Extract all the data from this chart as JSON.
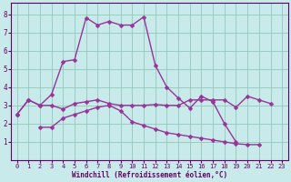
{
  "background_color": "#c8eaea",
  "grid_color": "#90c8b8",
  "line_color": "#993399",
  "xlabel": "Windchill (Refroidissement éolien,°C)",
  "xlabel_color": "#660066",
  "tick_color": "#660066",
  "xlim_min": -0.5,
  "xlim_max": 23.5,
  "ylim_min": 0,
  "ylim_max": 8.6,
  "xticks": [
    0,
    1,
    2,
    3,
    4,
    5,
    6,
    7,
    8,
    9,
    10,
    11,
    12,
    13,
    14,
    15,
    16,
    17,
    18,
    19,
    20,
    21,
    22,
    23
  ],
  "yticks": [
    1,
    2,
    3,
    4,
    5,
    6,
    7,
    8
  ],
  "series": [
    {
      "x": [
        0,
        1,
        2,
        3,
        4,
        5,
        6,
        7,
        8,
        9,
        10,
        11,
        12,
        13,
        14,
        15,
        16,
        17,
        18,
        19,
        20,
        21,
        22,
        23
      ],
      "y": [
        2.5,
        3.3,
        3.0,
        3.6,
        5.4,
        5.5,
        7.8,
        7.4,
        7.6,
        7.4,
        7.4,
        7.85,
        5.2,
        4.0,
        3.4,
        2.85,
        3.5,
        3.2,
        2.0,
        1.0,
        null,
        null,
        null,
        null
      ],
      "marker": "D",
      "markersize": 2.5,
      "lw": 1.0
    },
    {
      "x": [
        0,
        1,
        2,
        3,
        4,
        5,
        6,
        7,
        8,
        9,
        10,
        11,
        12,
        13,
        14,
        15,
        16,
        17,
        18,
        19,
        20,
        21,
        22,
        23
      ],
      "y": [
        2.5,
        3.3,
        3.0,
        3.0,
        2.8,
        3.1,
        3.2,
        3.3,
        3.1,
        3.0,
        3.0,
        3.0,
        3.05,
        3.0,
        3.0,
        3.3,
        3.3,
        3.3,
        3.3,
        2.9,
        3.5,
        3.3,
        3.1,
        null
      ],
      "marker": "D",
      "markersize": 2.5,
      "lw": 1.0
    },
    {
      "x": [
        2,
        3,
        4,
        5,
        6,
        7,
        8,
        9,
        10,
        11,
        12,
        13,
        14,
        15,
        16,
        17,
        18,
        19,
        20,
        21,
        22,
        23
      ],
      "y": [
        1.8,
        1.8,
        2.3,
        2.5,
        2.7,
        2.9,
        3.0,
        2.7,
        2.1,
        1.9,
        1.7,
        1.5,
        1.4,
        1.3,
        1.2,
        1.1,
        1.0,
        0.9,
        0.85,
        0.85,
        null,
        null
      ],
      "marker": "D",
      "markersize": 2.5,
      "lw": 1.0
    }
  ]
}
